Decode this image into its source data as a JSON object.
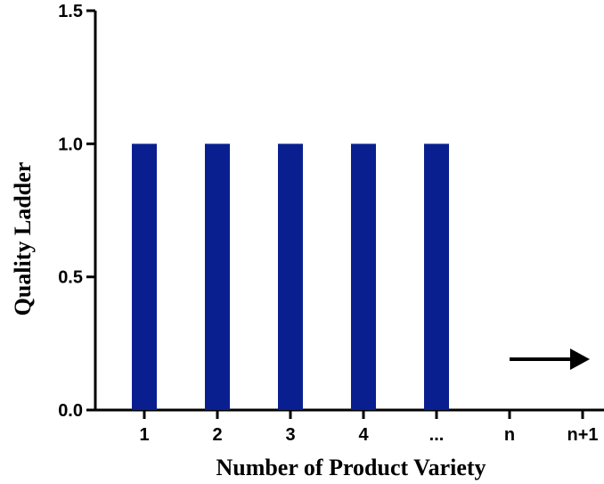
{
  "chart_data": {
    "type": "bar",
    "title": "",
    "xlabel": "Number of Product Variety",
    "ylabel": "Quality Ladder",
    "categories": [
      "1",
      "2",
      "3",
      "4",
      "...",
      "n",
      "n+1"
    ],
    "values": [
      1.0,
      1.0,
      1.0,
      1.0,
      1.0,
      null,
      null
    ],
    "ylim": [
      0,
      1.5
    ],
    "yticks": [
      "0.0",
      "0.5",
      "1.0",
      "1.5"
    ],
    "grid": false,
    "bar_color": "#0a1f8f",
    "annotations": [
      {
        "type": "arrow",
        "direction": "right",
        "from_category": "n",
        "to_category": "n+1"
      }
    ]
  }
}
